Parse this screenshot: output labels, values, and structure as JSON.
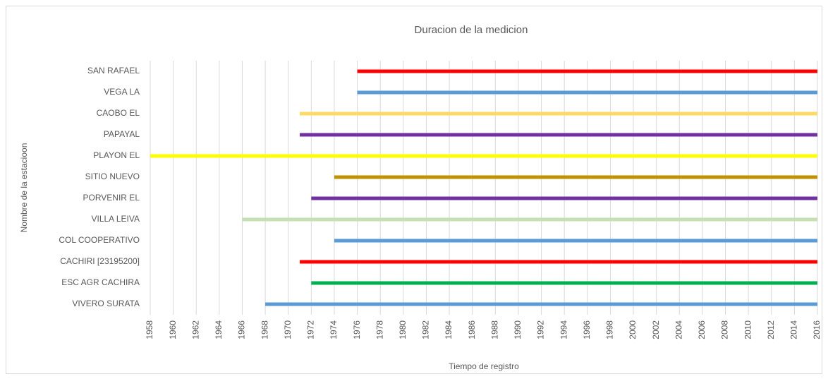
{
  "chart_data": {
    "type": "range-bar",
    "title": "Duracion de la medicion",
    "xlabel": "Tiempo de registro",
    "ylabel": "Nombre de la estacioon",
    "categories": [
      "SAN RAFAEL",
      "VEGA LA",
      "CAOBO EL",
      "PAPAYAL",
      "PLAYON EL",
      "SITIO NUEVO",
      "PORVENIR EL",
      "VILLA LEIVA",
      "COL COOPERATIVO",
      "CACHIRI [23195200]",
      "ESC AGR CACHIRA",
      "VIVERO SURATA"
    ],
    "start": [
      1976,
      1976,
      1971,
      1971,
      1958,
      1974,
      1972,
      1966,
      1974,
      1971,
      1972,
      1968
    ],
    "end": [
      2016,
      2016,
      2016,
      2016,
      2016,
      2016,
      2016,
      2016,
      2016,
      2016,
      2016,
      2016
    ],
    "colors": [
      "#ff0000",
      "#5b9bd5",
      "#ffd966",
      "#7030a0",
      "#ffff00",
      "#bf9000",
      "#7030a0",
      "#c5e0b4",
      "#5b9bd5",
      "#ff0000",
      "#00b050",
      "#5b9bd5"
    ],
    "xlim": [
      1958,
      2016
    ],
    "xticks": [
      1958,
      1960,
      1962,
      1964,
      1966,
      1968,
      1970,
      1972,
      1974,
      1976,
      1978,
      1980,
      1982,
      1984,
      1986,
      1988,
      1990,
      1992,
      1994,
      1996,
      1998,
      2000,
      2002,
      2004,
      2006,
      2008,
      2010,
      2012,
      2014,
      2016
    ],
    "grid": true
  }
}
